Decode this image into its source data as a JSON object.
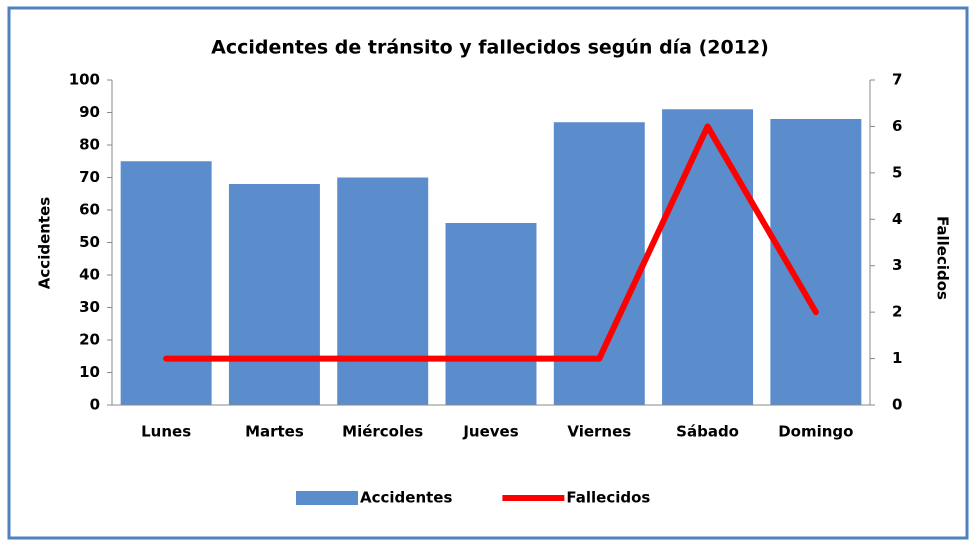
{
  "chart_data": {
    "type": "bar",
    "title": "Accidentes de tránsito y fallecidos según día (2012)",
    "categories": [
      "Lunes",
      "Martes",
      "Miércoles",
      "Jueves",
      "Viernes",
      "Sábado",
      "Domingo"
    ],
    "series": [
      {
        "name": "Accidentes",
        "color": "#5b8ccc",
        "values": [
          75,
          68,
          70,
          56,
          87,
          91,
          88
        ]
      },
      {
        "name": "Fallecidos",
        "color": "#ff0000",
        "axis": "y2",
        "values": [
          1,
          1,
          1,
          1,
          1,
          6,
          2
        ]
      }
    ],
    "ylabel": "Accidentes",
    "y2label": "Fallecidos",
    "ylim": [
      0,
      100
    ],
    "yticks": [
      0,
      10,
      20,
      30,
      40,
      50,
      60,
      70,
      80,
      90,
      100
    ],
    "y2lim": [
      0,
      7
    ],
    "y2ticks": [
      0,
      1,
      2,
      3,
      4,
      5,
      6,
      7
    ],
    "legend": "bottom"
  }
}
